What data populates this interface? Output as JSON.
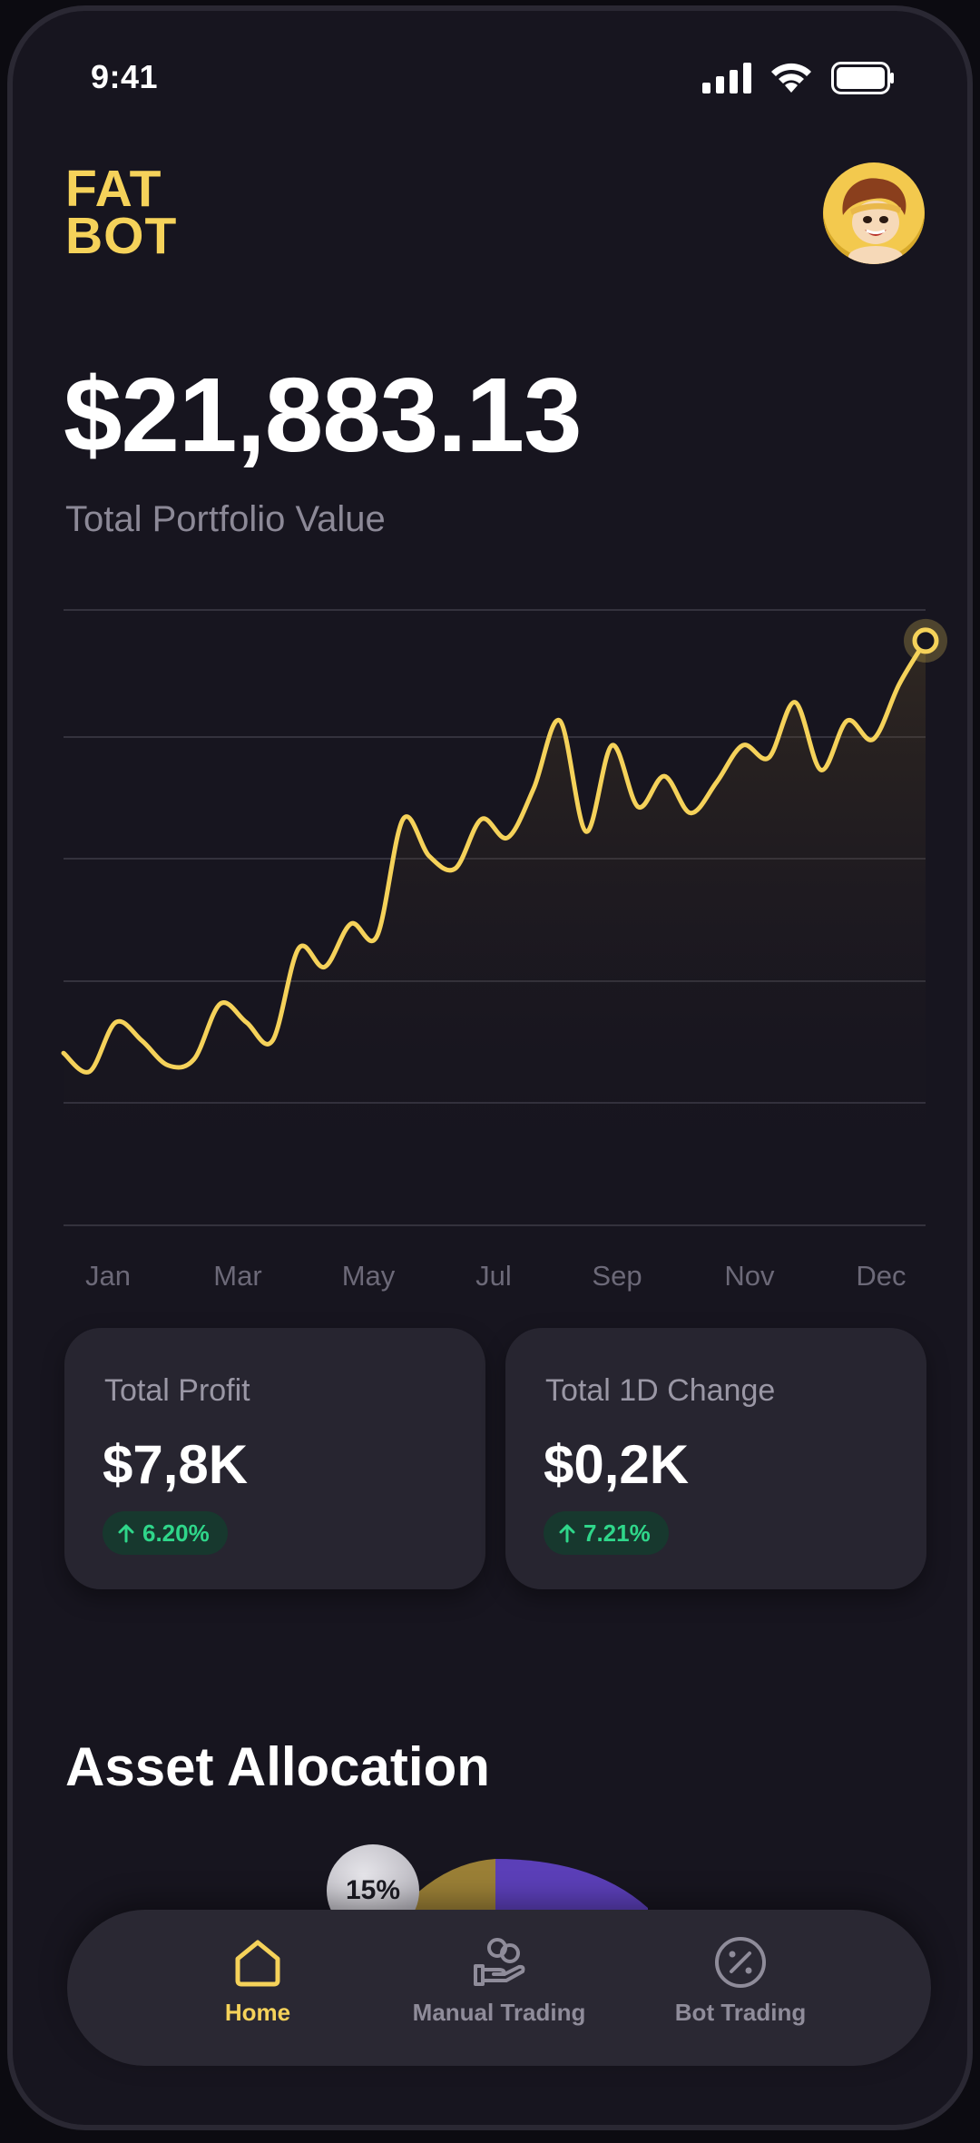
{
  "status_bar": {
    "time": "9:41"
  },
  "header": {
    "logo_line1": "FAT",
    "logo_line2": "BOT",
    "avatar_icon": "mascot-avatar-icon"
  },
  "portfolio": {
    "value": "$21,883.13",
    "label": "Total Portfolio Value"
  },
  "colors": {
    "accent": "#f5d25a",
    "background": "#17151f",
    "card": "#272530",
    "positive": "#2fd68a",
    "allocation_purple": "#5b3fb8",
    "allocation_gold": "#9a7f36"
  },
  "chart_data": {
    "type": "line",
    "x_tick_labels": [
      "Jan",
      "Mar",
      "May",
      "Jul",
      "Sep",
      "Nov",
      "Dec"
    ],
    "grid": true,
    "legend": "none",
    "values": [
      0.28,
      0.25,
      0.33,
      0.3,
      0.26,
      0.27,
      0.36,
      0.33,
      0.3,
      0.45,
      0.42,
      0.49,
      0.47,
      0.66,
      0.6,
      0.58,
      0.66,
      0.63,
      0.71,
      0.82,
      0.64,
      0.78,
      0.68,
      0.73,
      0.67,
      0.72,
      0.78,
      0.76,
      0.85,
      0.74,
      0.82,
      0.79,
      0.88,
      0.95
    ],
    "ylim": [
      0,
      1
    ]
  },
  "stats": [
    {
      "title": "Total Profit",
      "value": "$7,8K",
      "change": "6.20%"
    },
    {
      "title": "Total 1D Change",
      "value": "$0,2K",
      "change": "7.21%"
    }
  ],
  "allocation": {
    "title": "Asset Allocation",
    "visible_percent": "15%"
  },
  "nav": {
    "items": [
      {
        "label": "Home",
        "icon": "home-icon",
        "active": true
      },
      {
        "label": "Manual Trading",
        "icon": "hand-coins-icon",
        "active": false
      },
      {
        "label": "Bot Trading",
        "icon": "percent-circle-icon",
        "active": false
      }
    ]
  }
}
